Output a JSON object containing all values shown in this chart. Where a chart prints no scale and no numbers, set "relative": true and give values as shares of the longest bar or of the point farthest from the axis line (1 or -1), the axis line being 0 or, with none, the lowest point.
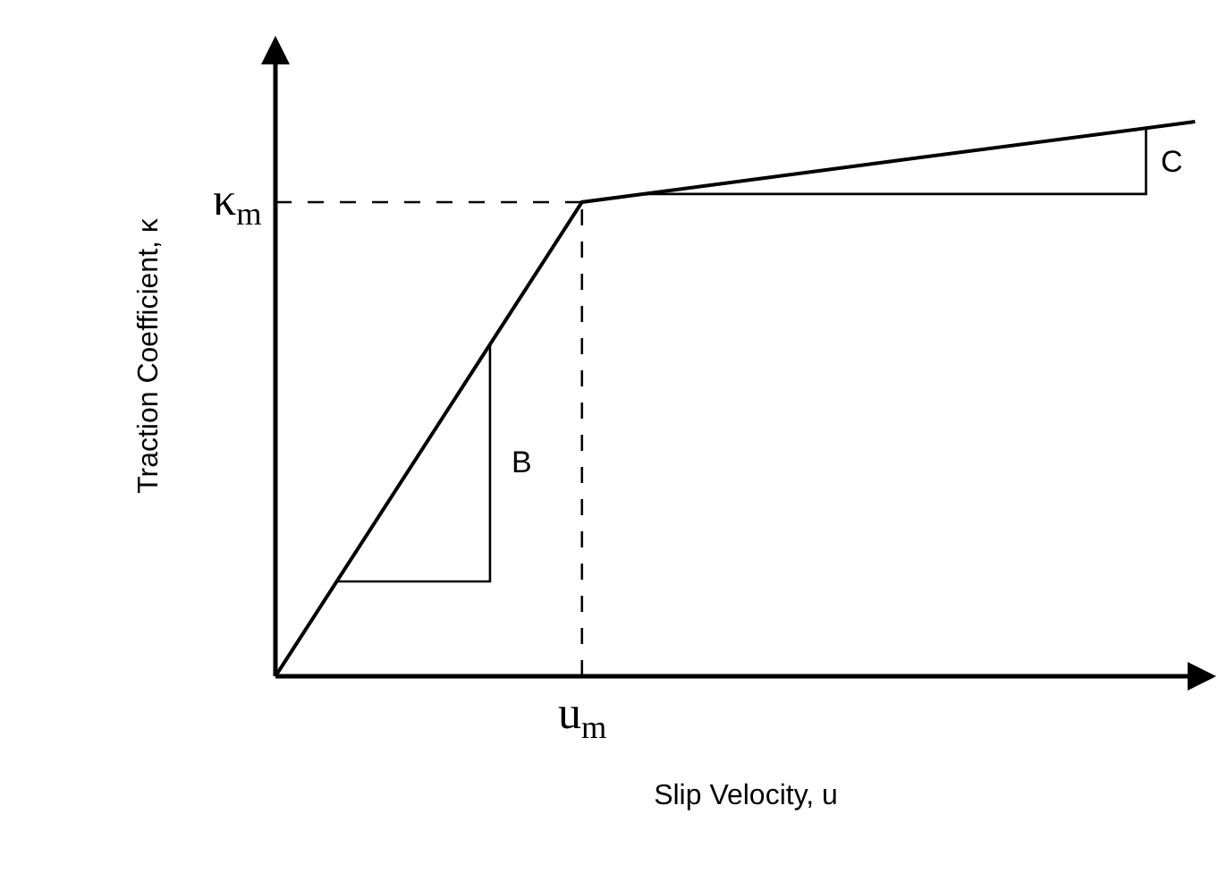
{
  "chart_data": {
    "type": "line",
    "relative": true,
    "xlabel": "Slip Velocity, u",
    "ylabel": "Traction Coefficient, κ",
    "categories": [
      null,
      null,
      null,
      null
    ],
    "series": [
      {
        "color": "#000000",
        "values": [
          0,
          0.855,
          0.928,
          1
        ]
      }
    ],
    "ref_lines": [
      {
        "axis": "y",
        "value": 0.855,
        "label": "κ$_{m}$",
        "line_style": "dashed",
        "color": "#000000"
      }
    ],
    "annotations": [
      "B",
      "C",
      "u$_{m}$"
    ],
    "grid": false,
    "marker": "none",
    "line_style": "solid"
  }
}
